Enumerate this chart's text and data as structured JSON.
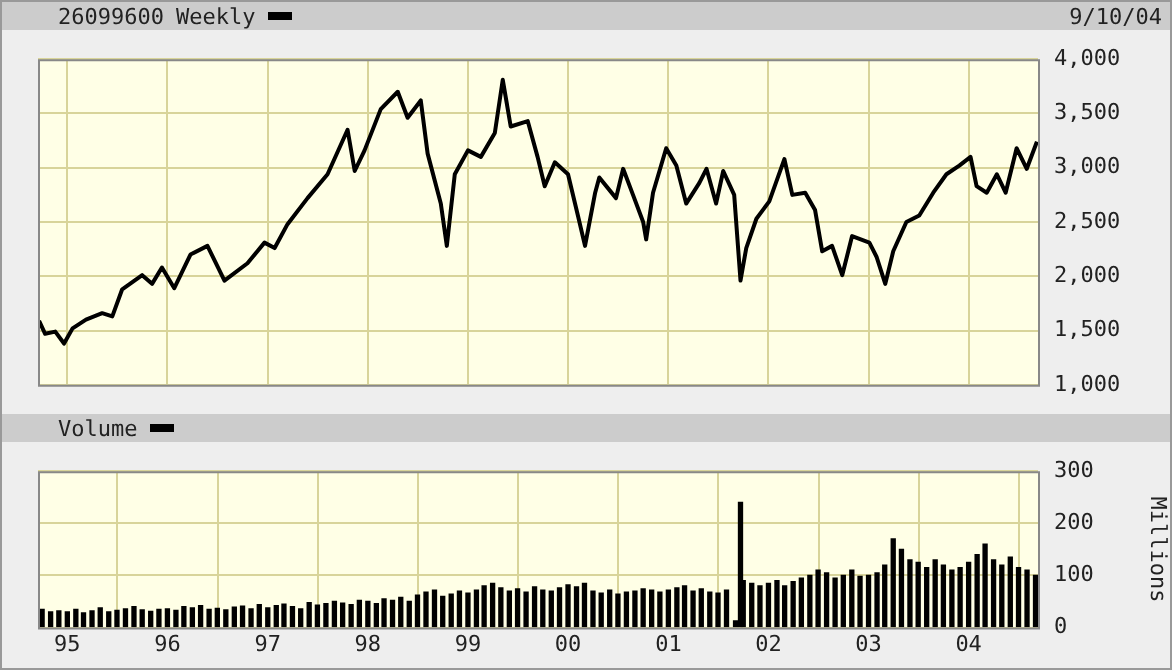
{
  "chart_data": [
    {
      "type": "line",
      "title": "26099600",
      "annotations": [
        "9/10/04"
      ],
      "legend": "top left",
      "grid": true,
      "tick_labels": "y",
      "marker": "none",
      "xlim": [
        "1994-09-16",
        "2004-09-10"
      ],
      "xticks": [
        {
          "value": "1995-01-01",
          "label": null
        },
        {
          "value": "1996-01-01",
          "label": null
        },
        {
          "value": "1997-01-01",
          "label": null
        },
        {
          "value": "1998-01-01",
          "label": null
        },
        {
          "value": "1999-01-01",
          "label": null
        },
        {
          "value": "2000-01-01",
          "label": null
        },
        {
          "value": "2001-01-01",
          "label": null
        },
        {
          "value": "2002-01-01",
          "label": null
        },
        {
          "value": "2003-01-01",
          "label": null
        },
        {
          "value": "2004-01-01",
          "label": null
        }
      ],
      "ylim": [
        1000,
        4000
      ],
      "yticks": [
        {
          "value": 1000,
          "label": "1,000"
        },
        {
          "value": 1500,
          "label": "1,500"
        },
        {
          "value": 2000,
          "label": "2,000"
        },
        {
          "value": 2500,
          "label": "2,500"
        },
        {
          "value": 3000,
          "label": "3,000"
        },
        {
          "value": 3500,
          "label": "3,500"
        },
        {
          "value": 4000,
          "label": "4,000"
        }
      ],
      "x": [
        "1994-09-20",
        "1994-10-12",
        "1994-11-18",
        "1994-12-20",
        "1995-01-20",
        "1995-03-10",
        "1995-05-08",
        "1995-06-14",
        "1995-07-20",
        "1995-10-01",
        "1995-11-06",
        "1995-12-12",
        "1996-01-26",
        "1996-03-25",
        "1996-05-26",
        "1996-07-27",
        "1996-10-19",
        "1996-12-20",
        "1997-01-26",
        "1997-03-14",
        "1997-05-26",
        "1997-08-07",
        "1997-10-19",
        "1997-11-14",
        "1997-12-20",
        "1998-02-17",
        "1998-04-20",
        "1998-05-26",
        "1998-07-13",
        "1998-08-07",
        "1998-09-24",
        "1998-10-16",
        "1998-11-14",
        "1999-01-01",
        "1999-02-17",
        "1999-04-09",
        "1999-05-08",
        "1999-06-06",
        "1999-08-07",
        "1999-09-12",
        "1999-10-08",
        "1999-11-14",
        "2000-01-01",
        "2000-02-06",
        "2000-03-03",
        "2000-04-09",
        "2000-04-24",
        "2000-06-24",
        "2000-07-20",
        "2000-08-25",
        "2000-10-01",
        "2000-10-12",
        "2000-11-06",
        "2000-12-24",
        "2001-01-30",
        "2001-03-07",
        "2001-04-24",
        "2001-05-20",
        "2001-06-24",
        "2001-07-20",
        "2001-08-29",
        "2001-09-21",
        "2001-10-12",
        "2001-11-18",
        "2002-01-04",
        "2002-02-28",
        "2002-03-29",
        "2002-05-15",
        "2002-06-20",
        "2002-07-16",
        "2002-08-21",
        "2002-09-27",
        "2002-11-02",
        "2003-01-04",
        "2003-01-30",
        "2003-03-03",
        "2003-04-01",
        "2003-05-19",
        "2003-07-05",
        "2003-08-25",
        "2003-10-12",
        "2003-11-28",
        "2004-01-08",
        "2004-01-30",
        "2004-03-07",
        "2004-04-13",
        "2004-05-15",
        "2004-06-24",
        "2004-07-31",
        "2004-09-06"
      ],
      "series": [
        {
          "name": "Weekly",
          "color": "#000000",
          "values": [
            1590,
            1470,
            1490,
            1380,
            1520,
            1600,
            1660,
            1630,
            1880,
            2010,
            1930,
            2080,
            1890,
            2200,
            2280,
            1960,
            2120,
            2310,
            2260,
            2480,
            2720,
            2940,
            3350,
            2970,
            3160,
            3540,
            3700,
            3460,
            3620,
            3130,
            2670,
            2280,
            2940,
            3160,
            3100,
            3320,
            3810,
            3380,
            3430,
            3100,
            2830,
            3050,
            2940,
            2560,
            2280,
            2770,
            2910,
            2720,
            2990,
            2750,
            2500,
            2340,
            2770,
            3180,
            3020,
            2670,
            2860,
            2990,
            2670,
            2970,
            2750,
            1960,
            2260,
            2530,
            2690,
            3080,
            2750,
            2770,
            2610,
            2230,
            2280,
            2010,
            2370,
            2310,
            2180,
            1930,
            2230,
            2500,
            2560,
            2770,
            2940,
            3020,
            3100,
            2830,
            2770,
            2940,
            2770,
            3180,
            2990,
            3240
          ]
        }
      ]
    },
    {
      "type": "bar",
      "legend": "top left",
      "grid": true,
      "ylabel": "Millions",
      "xlim": [
        "1994-09-16",
        "2004-09-10"
      ],
      "xticks": [
        {
          "value": "1995-01-01",
          "label": "95"
        },
        {
          "value": "1996-01-01",
          "label": "96"
        },
        {
          "value": "1997-01-01",
          "label": "97"
        },
        {
          "value": "1998-01-01",
          "label": "98"
        },
        {
          "value": "1999-01-01",
          "label": "99"
        },
        {
          "value": "2000-01-01",
          "label": "00"
        },
        {
          "value": "2001-01-01",
          "label": "01"
        },
        {
          "value": "2002-01-01",
          "label": "02"
        },
        {
          "value": "2003-01-01",
          "label": "03"
        },
        {
          "value": "2004-01-01",
          "label": "04"
        }
      ],
      "ylim": [
        0,
        300
      ],
      "yticks": [
        0,
        100,
        200,
        300
      ],
      "x": [
        "1994-10",
        "1994-11",
        "1994-12",
        "1995-01",
        "1995-02",
        "1995-03",
        "1995-04",
        "1995-05",
        "1995-06",
        "1995-07",
        "1995-08",
        "1995-09",
        "1995-10",
        "1995-11",
        "1995-12",
        "1996-01",
        "1996-02",
        "1996-03",
        "1996-04",
        "1996-05",
        "1996-06",
        "1996-07",
        "1996-08",
        "1996-09",
        "1996-10",
        "1996-11",
        "1996-12",
        "1997-01",
        "1997-02",
        "1997-03",
        "1997-04",
        "1997-05",
        "1997-06",
        "1997-07",
        "1997-08",
        "1997-09",
        "1997-10",
        "1997-11",
        "1997-12",
        "1998-01",
        "1998-02",
        "1998-03",
        "1998-04",
        "1998-05",
        "1998-06",
        "1998-07",
        "1998-08",
        "1998-09",
        "1998-10",
        "1998-11",
        "1998-12",
        "1999-01",
        "1999-02",
        "1999-03",
        "1999-04",
        "1999-05",
        "1999-06",
        "1999-07",
        "1999-08",
        "1999-09",
        "1999-10",
        "1999-11",
        "1999-12",
        "2000-01",
        "2000-02",
        "2000-03",
        "2000-04",
        "2000-05",
        "2000-06",
        "2000-07",
        "2000-08",
        "2000-09",
        "2000-10",
        "2000-11",
        "2000-12",
        "2001-01",
        "2001-02",
        "2001-03",
        "2001-04",
        "2001-05",
        "2001-06",
        "2001-07",
        "2001-08",
        "2001-09-03",
        "2001-09-21",
        "2001-10",
        "2001-11",
        "2001-12",
        "2002-01",
        "2002-02",
        "2002-03",
        "2002-04",
        "2002-05",
        "2002-06",
        "2002-07",
        "2002-08",
        "2002-09",
        "2002-10",
        "2002-11",
        "2002-12",
        "2003-01",
        "2003-02",
        "2003-03",
        "2003-04",
        "2003-05",
        "2003-06",
        "2003-07",
        "2003-08",
        "2003-09",
        "2003-10",
        "2003-11",
        "2003-12",
        "2004-01",
        "2004-02",
        "2004-03",
        "2004-04",
        "2004-05",
        "2004-06",
        "2004-07",
        "2004-08",
        "2004-09"
      ],
      "series": [
        {
          "name": "Volume",
          "color": "#000000",
          "values": [
            35,
            30,
            32,
            30,
            35,
            28,
            32,
            38,
            30,
            33,
            36,
            40,
            34,
            31,
            35,
            36,
            33,
            40,
            38,
            42,
            35,
            37,
            34,
            39,
            41,
            36,
            44,
            38,
            42,
            45,
            40,
            36,
            48,
            43,
            46,
            50,
            47,
            44,
            52,
            50,
            46,
            55,
            52,
            58,
            50,
            62,
            68,
            72,
            60,
            64,
            70,
            66,
            72,
            80,
            85,
            76,
            70,
            74,
            68,
            78,
            72,
            70,
            76,
            82,
            78,
            85,
            70,
            66,
            72,
            64,
            68,
            70,
            74,
            72,
            68,
            72,
            76,
            80,
            70,
            74,
            68,
            66,
            72,
            13,
            240,
            90,
            85,
            80,
            85,
            90,
            80,
            88,
            95,
            100,
            110,
            105,
            95,
            100,
            110,
            98,
            100,
            105,
            120,
            170,
            150,
            130,
            125,
            115,
            130,
            120,
            110,
            115,
            125,
            140,
            160,
            130,
            120,
            135,
            115,
            110,
            100
          ]
        }
      ]
    }
  ]
}
